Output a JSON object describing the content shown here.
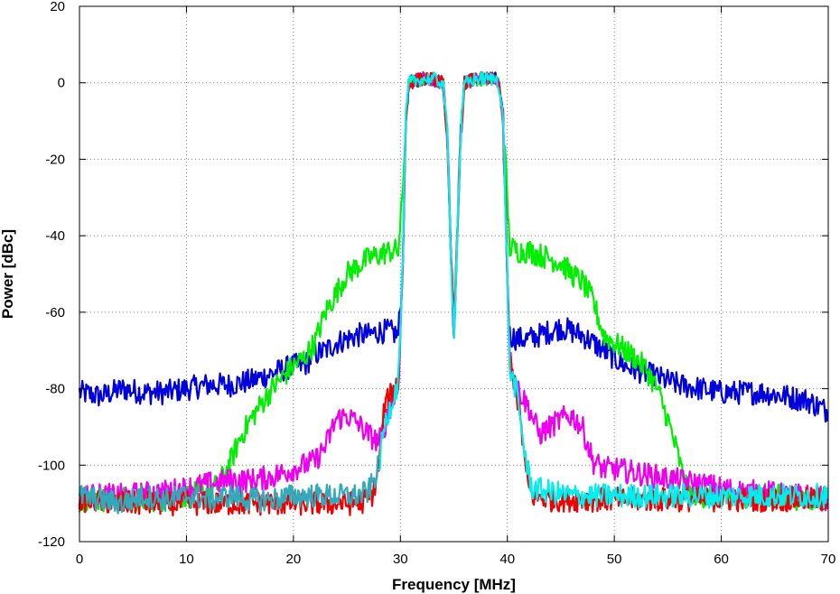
{
  "chart_data": {
    "type": "line",
    "title": "",
    "xlabel": "Frequency [MHz]",
    "ylabel": "Power [dBc]",
    "xlim": [
      0,
      70
    ],
    "ylim": [
      -120,
      20
    ],
    "grid": true,
    "x_ticks": [
      0,
      10,
      20,
      30,
      40,
      50,
      60,
      70
    ],
    "y_ticks": [
      20,
      0,
      -20,
      -40,
      -60,
      -80,
      -100,
      -120
    ],
    "series": [
      {
        "name": "blue",
        "color": "#0000dd",
        "points": [
          [
            0,
            -81
          ],
          [
            2,
            -82
          ],
          [
            4,
            -80
          ],
          [
            6,
            -81
          ],
          [
            8,
            -81
          ],
          [
            10,
            -80
          ],
          [
            12,
            -79
          ],
          [
            14,
            -79
          ],
          [
            16,
            -78
          ],
          [
            17,
            -77
          ],
          [
            18,
            -76
          ],
          [
            20,
            -74
          ],
          [
            21,
            -74
          ],
          [
            22,
            -71
          ],
          [
            23,
            -70
          ],
          [
            24,
            -68
          ],
          [
            25,
            -67
          ],
          [
            26,
            -66
          ],
          [
            27,
            -66
          ],
          [
            28,
            -65
          ],
          [
            29,
            -65
          ],
          [
            29.8,
            -66
          ],
          [
            30.2,
            -50
          ],
          [
            30.5,
            -10
          ],
          [
            30.8,
            0
          ],
          [
            32,
            1
          ],
          [
            33,
            1
          ],
          [
            34,
            0
          ],
          [
            34.4,
            -15
          ],
          [
            34.8,
            -50
          ],
          [
            35.0,
            -66
          ],
          [
            35.2,
            -50
          ],
          [
            35.6,
            -15
          ],
          [
            36,
            0
          ],
          [
            37,
            1
          ],
          [
            38,
            1
          ],
          [
            39,
            1
          ],
          [
            39.2,
            0
          ],
          [
            39.6,
            -10
          ],
          [
            40.0,
            -50
          ],
          [
            40.2,
            -66
          ],
          [
            41,
            -67
          ],
          [
            42,
            -67
          ],
          [
            43,
            -66
          ],
          [
            44,
            -65
          ],
          [
            45,
            -64
          ],
          [
            46,
            -65
          ],
          [
            47,
            -66
          ],
          [
            48,
            -68
          ],
          [
            49,
            -70
          ],
          [
            50,
            -72
          ],
          [
            51,
            -74
          ],
          [
            52,
            -75
          ],
          [
            53,
            -76
          ],
          [
            54,
            -77
          ],
          [
            56,
            -79
          ],
          [
            58,
            -80
          ],
          [
            60,
            -81
          ],
          [
            62,
            -81
          ],
          [
            64,
            -81
          ],
          [
            66,
            -82
          ],
          [
            68,
            -83
          ],
          [
            70,
            -86
          ]
        ]
      },
      {
        "name": "green",
        "color": "#00ee00",
        "points": [
          [
            0,
            -109
          ],
          [
            4,
            -109
          ],
          [
            8,
            -109
          ],
          [
            10,
            -108
          ],
          [
            12,
            -107
          ],
          [
            13,
            -105
          ],
          [
            14,
            -100
          ],
          [
            15,
            -93
          ],
          [
            16,
            -88
          ],
          [
            17,
            -84
          ],
          [
            18,
            -80
          ],
          [
            19,
            -77
          ],
          [
            20,
            -74
          ],
          [
            21,
            -72
          ],
          [
            22,
            -68
          ],
          [
            23,
            -60
          ],
          [
            24,
            -55
          ],
          [
            25,
            -50
          ],
          [
            26,
            -48
          ],
          [
            27,
            -46
          ],
          [
            28,
            -45
          ],
          [
            29,
            -44
          ],
          [
            29.8,
            -44
          ],
          [
            30.2,
            -30
          ],
          [
            30.5,
            -10
          ],
          [
            30.8,
            0
          ],
          [
            32,
            1
          ],
          [
            33,
            1
          ],
          [
            34,
            0
          ],
          [
            34.4,
            -15
          ],
          [
            34.8,
            -50
          ],
          [
            35.0,
            -66
          ],
          [
            35.2,
            -50
          ],
          [
            35.6,
            -15
          ],
          [
            36,
            0
          ],
          [
            37,
            1
          ],
          [
            38,
            1
          ],
          [
            39,
            1
          ],
          [
            39.2,
            0
          ],
          [
            39.6,
            -10
          ],
          [
            40.0,
            -30
          ],
          [
            40.2,
            -43
          ],
          [
            41,
            -44
          ],
          [
            42,
            -44
          ],
          [
            43,
            -45
          ],
          [
            44,
            -46
          ],
          [
            45,
            -47
          ],
          [
            46,
            -50
          ],
          [
            47,
            -52
          ],
          [
            48,
            -57
          ],
          [
            49,
            -66
          ],
          [
            50,
            -68
          ],
          [
            51,
            -70
          ],
          [
            52,
            -72
          ],
          [
            53,
            -75
          ],
          [
            54,
            -80
          ],
          [
            55,
            -88
          ],
          [
            56,
            -98
          ],
          [
            56.5,
            -104
          ],
          [
            57,
            -107
          ],
          [
            58,
            -108
          ],
          [
            60,
            -108
          ],
          [
            62,
            -108
          ],
          [
            64,
            -108
          ],
          [
            66,
            -108
          ],
          [
            68,
            -109
          ],
          [
            70,
            -108
          ]
        ]
      },
      {
        "name": "magenta",
        "color": "#ee00ee",
        "points": [
          [
            0,
            -108
          ],
          [
            4,
            -108
          ],
          [
            8,
            -107
          ],
          [
            10,
            -106
          ],
          [
            12,
            -105
          ],
          [
            14,
            -104
          ],
          [
            16,
            -104
          ],
          [
            18,
            -103
          ],
          [
            20,
            -101
          ],
          [
            21,
            -100
          ],
          [
            22,
            -99
          ],
          [
            23,
            -95
          ],
          [
            24,
            -88
          ],
          [
            25,
            -87
          ],
          [
            26,
            -89
          ],
          [
            27,
            -92
          ],
          [
            28,
            -94
          ],
          [
            28.5,
            -90
          ],
          [
            29,
            -85
          ],
          [
            29.8,
            -80
          ],
          [
            30.2,
            -50
          ],
          [
            30.5,
            -10
          ],
          [
            30.8,
            0
          ],
          [
            32,
            1
          ],
          [
            33,
            1
          ],
          [
            34,
            0
          ],
          [
            34.4,
            -15
          ],
          [
            34.8,
            -50
          ],
          [
            35.0,
            -66
          ],
          [
            35.2,
            -50
          ],
          [
            35.6,
            -15
          ],
          [
            36,
            0
          ],
          [
            37,
            1
          ],
          [
            38,
            1
          ],
          [
            39,
            1
          ],
          [
            39.2,
            0
          ],
          [
            39.6,
            -10
          ],
          [
            40.0,
            -50
          ],
          [
            40.2,
            -72
          ],
          [
            41,
            -80
          ],
          [
            42,
            -85
          ],
          [
            43,
            -92
          ],
          [
            44,
            -90
          ],
          [
            45,
            -88
          ],
          [
            46,
            -87
          ],
          [
            47,
            -90
          ],
          [
            48,
            -99
          ],
          [
            49,
            -101
          ],
          [
            50,
            -101
          ],
          [
            52,
            -102
          ],
          [
            54,
            -103
          ],
          [
            56,
            -104
          ],
          [
            58,
            -105
          ],
          [
            60,
            -106
          ],
          [
            62,
            -107
          ],
          [
            64,
            -107
          ],
          [
            66,
            -108
          ],
          [
            68,
            -108
          ],
          [
            70,
            -109
          ]
        ]
      },
      {
        "name": "red",
        "color": "#ee0000",
        "points": [
          [
            0,
            -109
          ],
          [
            4,
            -110
          ],
          [
            8,
            -110
          ],
          [
            10,
            -110
          ],
          [
            12,
            -110
          ],
          [
            14,
            -110
          ],
          [
            16,
            -110
          ],
          [
            18,
            -110
          ],
          [
            20,
            -110
          ],
          [
            22,
            -110
          ],
          [
            24,
            -110
          ],
          [
            26,
            -110
          ],
          [
            27,
            -109
          ],
          [
            27.5,
            -107
          ],
          [
            28,
            -100
          ],
          [
            28.5,
            -85
          ],
          [
            29,
            -82
          ],
          [
            29.8,
            -78
          ],
          [
            30.2,
            -50
          ],
          [
            30.5,
            -10
          ],
          [
            30.8,
            0
          ],
          [
            32,
            1
          ],
          [
            33,
            1
          ],
          [
            34,
            0
          ],
          [
            34.4,
            -15
          ],
          [
            34.8,
            -50
          ],
          [
            35.0,
            -67
          ],
          [
            35.2,
            -50
          ],
          [
            35.6,
            -15
          ],
          [
            36,
            0
          ],
          [
            37,
            1
          ],
          [
            38,
            1
          ],
          [
            39,
            1
          ],
          [
            39.2,
            0
          ],
          [
            39.6,
            -10
          ],
          [
            40.0,
            -50
          ],
          [
            40.2,
            -72
          ],
          [
            40.8,
            -80
          ],
          [
            41.3,
            -90
          ],
          [
            41.8,
            -104
          ],
          [
            42.3,
            -108
          ],
          [
            44,
            -109
          ],
          [
            46,
            -109
          ],
          [
            48,
            -109
          ],
          [
            50,
            -109
          ],
          [
            52,
            -109
          ],
          [
            54,
            -109
          ],
          [
            56,
            -109
          ],
          [
            58,
            -109
          ],
          [
            60,
            -109
          ],
          [
            62,
            -109
          ],
          [
            64,
            -109
          ],
          [
            66,
            -109
          ],
          [
            68,
            -109
          ],
          [
            70,
            -109
          ]
        ]
      },
      {
        "name": "teal",
        "color": "#33aabb",
        "points": [
          [
            0,
            -108
          ],
          [
            2,
            -109
          ],
          [
            4,
            -110
          ],
          [
            6,
            -108
          ],
          [
            8,
            -109
          ],
          [
            10,
            -108
          ],
          [
            12,
            -109
          ],
          [
            14,
            -108
          ],
          [
            16,
            -109
          ],
          [
            18,
            -109
          ],
          [
            20,
            -108
          ],
          [
            22,
            -108
          ],
          [
            24,
            -108
          ],
          [
            26,
            -108
          ],
          [
            27,
            -107
          ],
          [
            27.5,
            -104
          ],
          [
            28,
            -100
          ]
        ]
      },
      {
        "name": "cyan",
        "color": "#00eeee",
        "points": [
          [
            28,
            -100
          ],
          [
            28.5,
            -90
          ],
          [
            29,
            -85
          ],
          [
            29.8,
            -78
          ],
          [
            30.2,
            -50
          ],
          [
            30.5,
            -10
          ],
          [
            30.8,
            0
          ],
          [
            32,
            1
          ],
          [
            33,
            1
          ],
          [
            34,
            0
          ],
          [
            34.4,
            -15
          ],
          [
            34.8,
            -50
          ],
          [
            35.0,
            -66
          ],
          [
            35.2,
            -50
          ],
          [
            35.6,
            -15
          ],
          [
            36,
            0
          ],
          [
            37,
            1
          ],
          [
            38,
            1
          ],
          [
            39,
            1
          ],
          [
            39.2,
            0
          ],
          [
            39.6,
            -10
          ],
          [
            40.0,
            -50
          ],
          [
            40.2,
            -75
          ],
          [
            40.8,
            -80
          ],
          [
            41.3,
            -90
          ],
          [
            41.8,
            -100
          ],
          [
            42.3,
            -106
          ],
          [
            44,
            -107
          ],
          [
            46,
            -108
          ],
          [
            48,
            -108
          ],
          [
            50,
            -108
          ],
          [
            52,
            -108
          ],
          [
            54,
            -108
          ],
          [
            56,
            -108
          ],
          [
            58,
            -108
          ],
          [
            60,
            -108
          ],
          [
            62,
            -108
          ],
          [
            64,
            -108
          ],
          [
            66,
            -108
          ],
          [
            68,
            -108
          ],
          [
            70,
            -108
          ]
        ]
      }
    ]
  }
}
